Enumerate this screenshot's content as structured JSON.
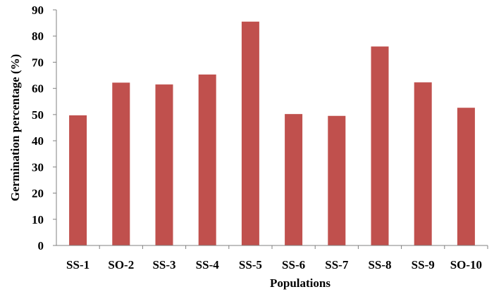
{
  "chart_data": {
    "type": "bar",
    "title": "",
    "xlabel": "Populations",
    "ylabel": "Germination percentage (%)",
    "ylim": [
      0,
      90
    ],
    "yticks": [
      0,
      10,
      20,
      30,
      40,
      50,
      60,
      70,
      80,
      90
    ],
    "categories": [
      "SS-1",
      "SO-2",
      "SS-3",
      "SS-4",
      "SS-5",
      "SS-6",
      "SS-7",
      "SS-8",
      "SS-9",
      "SO-10"
    ],
    "values": [
      49.7,
      62.2,
      61.5,
      65.3,
      85.5,
      50.2,
      49.5,
      76.0,
      62.3,
      52.6
    ],
    "grid": false,
    "legend": "none",
    "bar_color": "#c0504d"
  }
}
